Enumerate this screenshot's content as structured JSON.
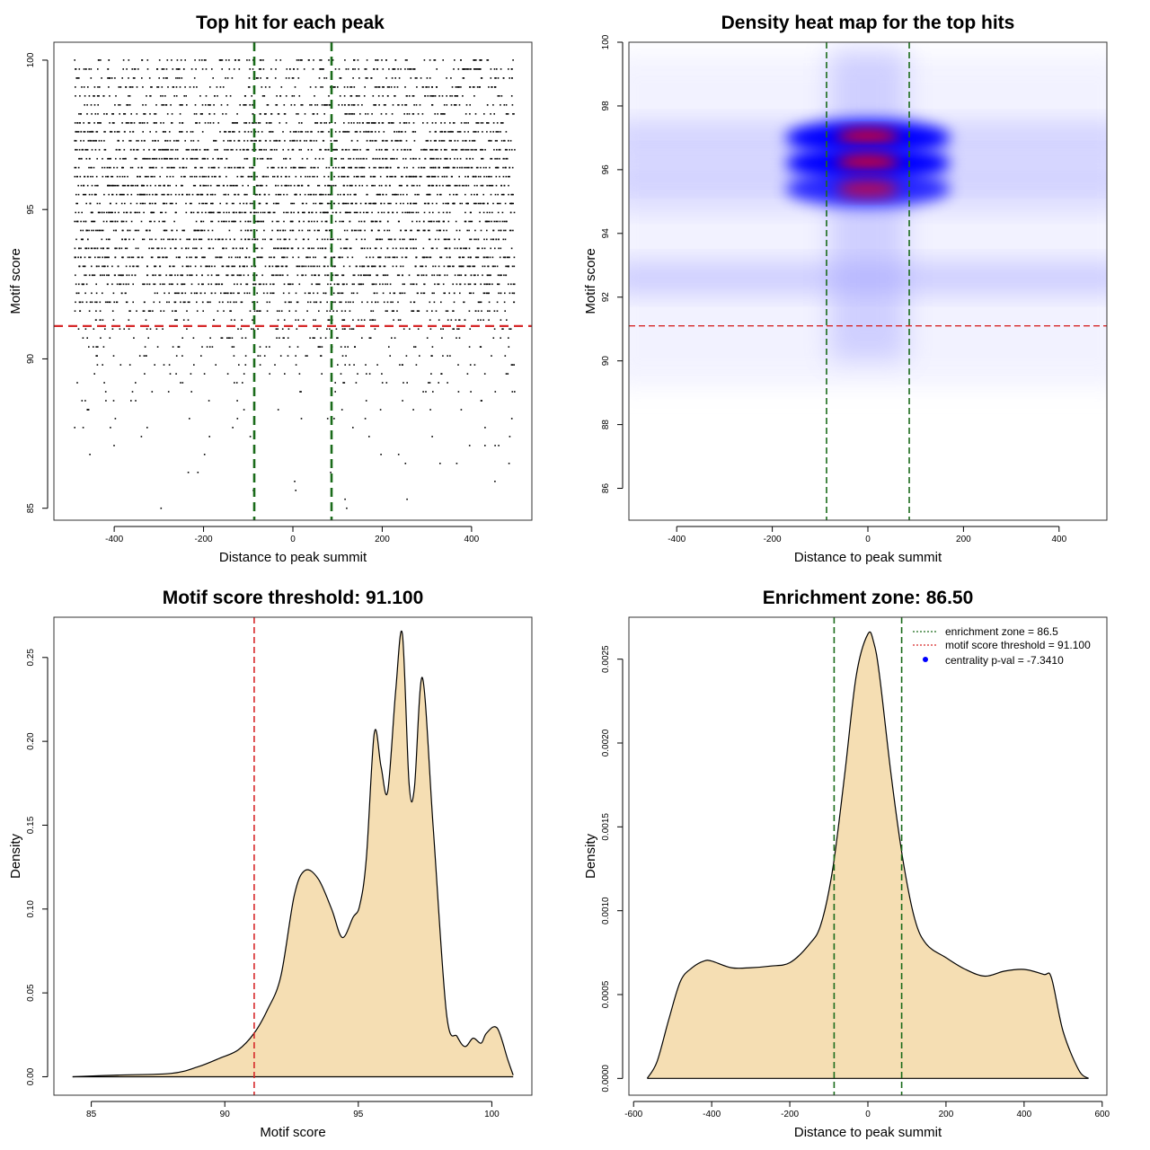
{
  "colors": {
    "threshold": "#d62728",
    "zone": "#1a6b1a",
    "fill": "#f5deb3",
    "heat_low": "#ffffff",
    "heat_mid": "#0000ff",
    "heat_high": "#ff0000",
    "points": "#000000",
    "legend_point": "#0000ff"
  },
  "chart_data": [
    {
      "type": "scatter",
      "title": "Top hit for each peak",
      "xlabel": "Distance to peak summit",
      "ylabel": "Motif score",
      "xlim": [
        -535,
        535
      ],
      "ylim": [
        84.6,
        100.6
      ],
      "xticks": [
        -400,
        -200,
        0,
        200,
        400
      ],
      "yticks": [
        85,
        90,
        95,
        100
      ],
      "vlines": [
        -86.5,
        86.5
      ],
      "hline": 91.1,
      "x_range": [
        -490,
        495
      ],
      "score_levels": [
        100.0,
        99.7,
        99.4,
        99.1,
        98.8,
        98.5,
        98.2,
        97.9,
        97.6,
        97.3,
        97.0,
        96.7,
        96.4,
        96.1,
        95.8,
        95.5,
        95.2,
        94.9,
        94.6,
        94.3,
        94.0,
        93.7,
        93.4,
        93.1,
        92.8,
        92.5,
        92.2,
        91.9,
        91.6,
        91.3,
        91.0,
        90.7,
        90.4,
        90.1,
        89.8,
        89.5,
        89.2,
        88.9,
        88.6,
        88.3,
        88.0,
        87.7,
        87.4,
        87.1,
        86.8,
        86.5,
        86.2,
        85.9,
        85.6,
        85.3,
        85.0
      ],
      "level_density": [
        0.45,
        0.6,
        0.4,
        0.5,
        0.45,
        0.55,
        0.5,
        0.75,
        0.8,
        0.85,
        0.95,
        0.85,
        0.95,
        0.9,
        0.95,
        0.9,
        0.85,
        0.85,
        0.75,
        0.7,
        0.7,
        0.75,
        0.85,
        0.9,
        0.85,
        0.8,
        0.6,
        0.55,
        0.4,
        0.3,
        0.25,
        0.22,
        0.2,
        0.17,
        0.15,
        0.12,
        0.1,
        0.08,
        0.06,
        0.05,
        0.04,
        0.035,
        0.03,
        0.025,
        0.02,
        0.02,
        0.015,
        0.012,
        0.01,
        0.01,
        0.008
      ]
    },
    {
      "type": "heatmap",
      "title": "Density heat map for the top hits",
      "xlabel": "Distance to peak summit",
      "ylabel": "Motif score",
      "xlim": [
        -500,
        500
      ],
      "ylim": [
        85,
        100
      ],
      "xticks": [
        -400,
        -200,
        0,
        200,
        400
      ],
      "yticks": [
        86,
        88,
        90,
        92,
        94,
        96,
        98,
        100
      ],
      "vlines": [
        -86.5,
        86.5
      ],
      "hline": 91.1,
      "hotspots": [
        {
          "x": 0,
          "y": 97.0,
          "intensity": 1.0
        },
        {
          "x": 0,
          "y": 96.2,
          "intensity": 1.0
        },
        {
          "x": 0,
          "y": 95.4,
          "intensity": 0.8
        }
      ],
      "bands": [
        {
          "y": 97.0,
          "intensity": 0.3
        },
        {
          "y": 96.0,
          "intensity": 0.28
        },
        {
          "y": 95.2,
          "intensity": 0.22
        },
        {
          "y": 92.6,
          "intensity": 0.35
        }
      ]
    },
    {
      "type": "area",
      "title": "Motif score threshold: 91.100",
      "xlabel": "Motif score",
      "ylabel": "Density",
      "xlim": [
        83.6,
        101.5
      ],
      "ylim": [
        -0.011,
        0.274
      ],
      "xticks": [
        85,
        90,
        95,
        100
      ],
      "yticks": [
        0.0,
        0.05,
        0.1,
        0.15,
        0.2,
        0.25
      ],
      "ytick_labels": [
        "0.00",
        "0.05",
        "0.10",
        "0.15",
        "0.20",
        "0.25"
      ],
      "vlines": [
        91.1
      ],
      "x": [
        84.3,
        86,
        88,
        89,
        89.8,
        90.5,
        91.1,
        91.6,
        92.1,
        92.6,
        93.0,
        93.5,
        94.0,
        94.4,
        94.8,
        95.05,
        95.3,
        95.6,
        95.85,
        96.1,
        96.4,
        96.65,
        96.9,
        97.1,
        97.4,
        97.8,
        98.3,
        98.7,
        99.0,
        99.3,
        99.6,
        99.8,
        100.2,
        100.6,
        100.8
      ],
      "y": [
        0.0,
        0.001,
        0.002,
        0.006,
        0.011,
        0.016,
        0.026,
        0.04,
        0.06,
        0.108,
        0.123,
        0.118,
        0.1,
        0.083,
        0.095,
        0.102,
        0.13,
        0.205,
        0.185,
        0.17,
        0.23,
        0.264,
        0.175,
        0.172,
        0.238,
        0.15,
        0.038,
        0.024,
        0.018,
        0.023,
        0.02,
        0.026,
        0.029,
        0.01,
        0.001
      ]
    },
    {
      "type": "area",
      "title": "Enrichment zone: 86.50",
      "xlabel": "Distance to peak summit",
      "ylabel": "Density",
      "xlim": [
        -612,
        612
      ],
      "ylim": [
        -0.0001,
        0.00275
      ],
      "xticks": [
        -600,
        -400,
        -200,
        0,
        200,
        400,
        600
      ],
      "yticks": [
        0.0,
        0.0005,
        0.001,
        0.0015,
        0.002,
        0.0025
      ],
      "ytick_labels": [
        "0.0000",
        "0.0005",
        "0.0010",
        "0.0015",
        "0.0020",
        "0.0025"
      ],
      "vlines": [
        -86.5,
        86.5
      ],
      "x": [
        -565,
        -540,
        -510,
        -480,
        -450,
        -420,
        -400,
        -350,
        -300,
        -250,
        -200,
        -150,
        -120,
        -90,
        -60,
        -30,
        0,
        15,
        30,
        60,
        90,
        120,
        150,
        200,
        250,
        300,
        350,
        400,
        450,
        470,
        500,
        540,
        565
      ],
      "y": [
        0.0,
        0.0001,
        0.00035,
        0.00058,
        0.00066,
        0.0007,
        0.0007,
        0.00066,
        0.00066,
        0.00067,
        0.00069,
        0.0008,
        0.00092,
        0.00125,
        0.0018,
        0.0024,
        0.00265,
        0.0026,
        0.0024,
        0.0018,
        0.0013,
        0.00095,
        0.0008,
        0.00072,
        0.00065,
        0.00061,
        0.00064,
        0.00065,
        0.00062,
        0.0006,
        0.00028,
        5e-05,
        0.0
      ],
      "legend": {
        "position": "top-right",
        "entries": [
          {
            "label": "enrichment zone = 86.5",
            "style": "dotted-green"
          },
          {
            "label": "motif score threshold = 91.100",
            "style": "dotted-red"
          },
          {
            "label": "centrality p-val = -7.3410",
            "style": "point-blue"
          }
        ]
      }
    }
  ]
}
